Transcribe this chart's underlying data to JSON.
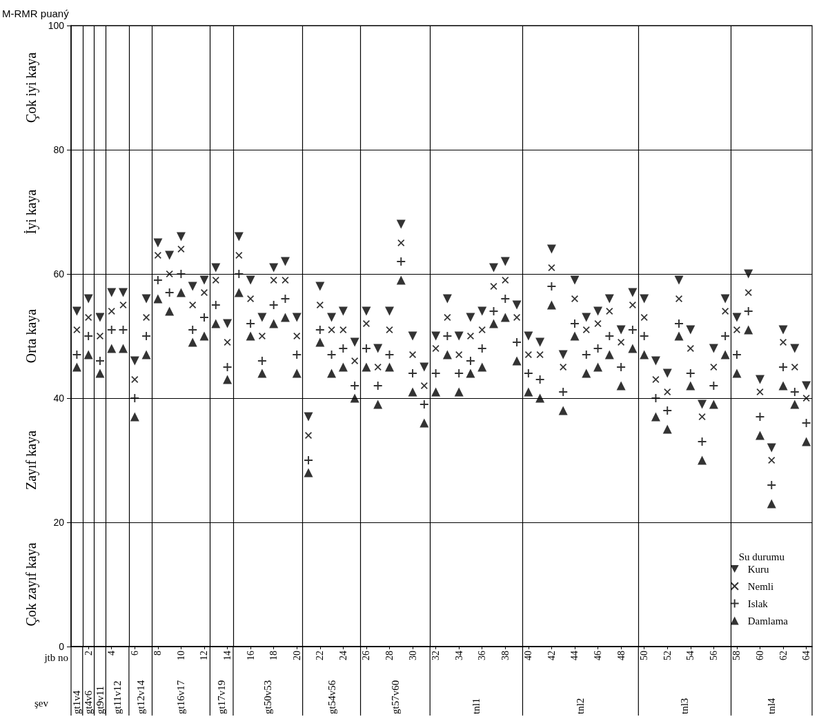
{
  "chart_data": {
    "type": "scatter",
    "ylabel": "M-RMR puaný",
    "xlabel": "jtb no",
    "legend_title": "Su durumu",
    "legend": "bottom right",
    "grid": "y",
    "annotations": [
      "Çok iyi kaya",
      "İyi kaya",
      "Orta kaya",
      "Zayıf kaya",
      "Çok zayıf kaya",
      "şev",
      "gt1v4",
      "gt4v6",
      "gt9v11",
      "gt11v12",
      "gt12v14",
      "gt16v17",
      "gt17v19",
      "gt50v53",
      "gt54v56",
      "gt57v60",
      "tnl1",
      "tnl2",
      "tnl3",
      "tnl4"
    ],
    "xlim": [
      0.5,
      64.5
    ],
    "xticks": [
      2,
      4,
      6,
      8,
      10,
      12,
      14,
      16,
      18,
      20,
      22,
      24,
      26,
      28,
      30,
      32,
      34,
      36,
      38,
      40,
      42,
      44,
      46,
      48,
      50,
      52,
      54,
      56,
      58,
      60,
      62,
      64
    ],
    "ylim": [
      0,
      100
    ],
    "yticks": [
      0,
      20,
      40,
      60,
      80,
      100
    ],
    "x": [
      1,
      2,
      3,
      4,
      5,
      6,
      7,
      8,
      9,
      10,
      11,
      12,
      13,
      14,
      15,
      16,
      17,
      18,
      19,
      20,
      21,
      22,
      23,
      24,
      25,
      26,
      27,
      28,
      29,
      30,
      31,
      32,
      33,
      34,
      35,
      36,
      37,
      38,
      39,
      40,
      41,
      42,
      43,
      44,
      45,
      46,
      47,
      48,
      49,
      50,
      51,
      52,
      53,
      54,
      55,
      56,
      57,
      58,
      59,
      60,
      61,
      62,
      63,
      64
    ],
    "ref_lines": [
      {
        "axis": "x",
        "value": 1.5
      },
      {
        "axis": "x",
        "value": 2.5
      },
      {
        "axis": "x",
        "value": 3.5
      },
      {
        "axis": "x",
        "value": 5.5
      },
      {
        "axis": "x",
        "value": 7.5
      },
      {
        "axis": "x",
        "value": 12.5
      },
      {
        "axis": "x",
        "value": 14.5
      },
      {
        "axis": "x",
        "value": 20.5
      },
      {
        "axis": "x",
        "value": 25.5
      },
      {
        "axis": "x",
        "value": 31.5
      },
      {
        "axis": "x",
        "value": 39.5
      },
      {
        "axis": "x",
        "value": 49.5
      },
      {
        "axis": "x",
        "value": 57.5
      }
    ],
    "series": [
      {
        "name": "Kuru",
        "color": "#000000",
        "marker": "triangle-down",
        "values": [
          54,
          56,
          53,
          57,
          57,
          46,
          56,
          65,
          63,
          66,
          58,
          59,
          61,
          52,
          66,
          59,
          53,
          61,
          62,
          53,
          37,
          58,
          53,
          54,
          49,
          54,
          48,
          54,
          68,
          50,
          45,
          50,
          56,
          50,
          53,
          54,
          61,
          62,
          55,
          50,
          49,
          64,
          47,
          59,
          53,
          54,
          56,
          51,
          57,
          56,
          46,
          44,
          59,
          51,
          39,
          48,
          56,
          53,
          60,
          43,
          32,
          51,
          48,
          42
        ]
      },
      {
        "name": "Nemli",
        "color": "#000000",
        "marker": "x",
        "values": [
          51,
          53,
          50,
          54,
          55,
          43,
          53,
          63,
          60,
          64,
          55,
          57,
          59,
          49,
          63,
          56,
          50,
          59,
          59,
          50,
          34,
          55,
          51,
          51,
          46,
          52,
          45,
          51,
          65,
          47,
          42,
          48,
          53,
          47,
          50,
          51,
          58,
          59,
          53,
          47,
          47,
          61,
          45,
          56,
          51,
          52,
          54,
          49,
          55,
          53,
          43,
          41,
          56,
          48,
          37,
          45,
          54,
          51,
          57,
          41,
          30,
          49,
          45,
          40
        ]
      },
      {
        "name": "Islak",
        "color": "#000000",
        "marker": "cross",
        "values": [
          47,
          50,
          46,
          51,
          51,
          40,
          50,
          59,
          57,
          60,
          51,
          53,
          55,
          45,
          60,
          52,
          46,
          55,
          56,
          47,
          30,
          51,
          47,
          48,
          42,
          48,
          42,
          47,
          62,
          44,
          39,
          44,
          50,
          44,
          46,
          48,
          54,
          56,
          49,
          44,
          43,
          58,
          41,
          52,
          47,
          48,
          50,
          45,
          51,
          50,
          40,
          38,
          52,
          44,
          33,
          42,
          50,
          47,
          54,
          37,
          26,
          45,
          41,
          36
        ]
      },
      {
        "name": "Damlama",
        "color": "#000000",
        "marker": "triangle",
        "values": [
          45,
          47,
          44,
          48,
          48,
          37,
          47,
          56,
          54,
          57,
          49,
          50,
          52,
          43,
          57,
          50,
          44,
          52,
          53,
          44,
          28,
          49,
          44,
          45,
          40,
          45,
          39,
          45,
          59,
          41,
          36,
          41,
          47,
          41,
          44,
          45,
          52,
          53,
          46,
          41,
          40,
          55,
          38,
          50,
          44,
          45,
          47,
          42,
          48,
          47,
          37,
          35,
          50,
          42,
          30,
          39,
          47,
          44,
          51,
          34,
          23,
          42,
          39,
          33
        ]
      }
    ]
  }
}
